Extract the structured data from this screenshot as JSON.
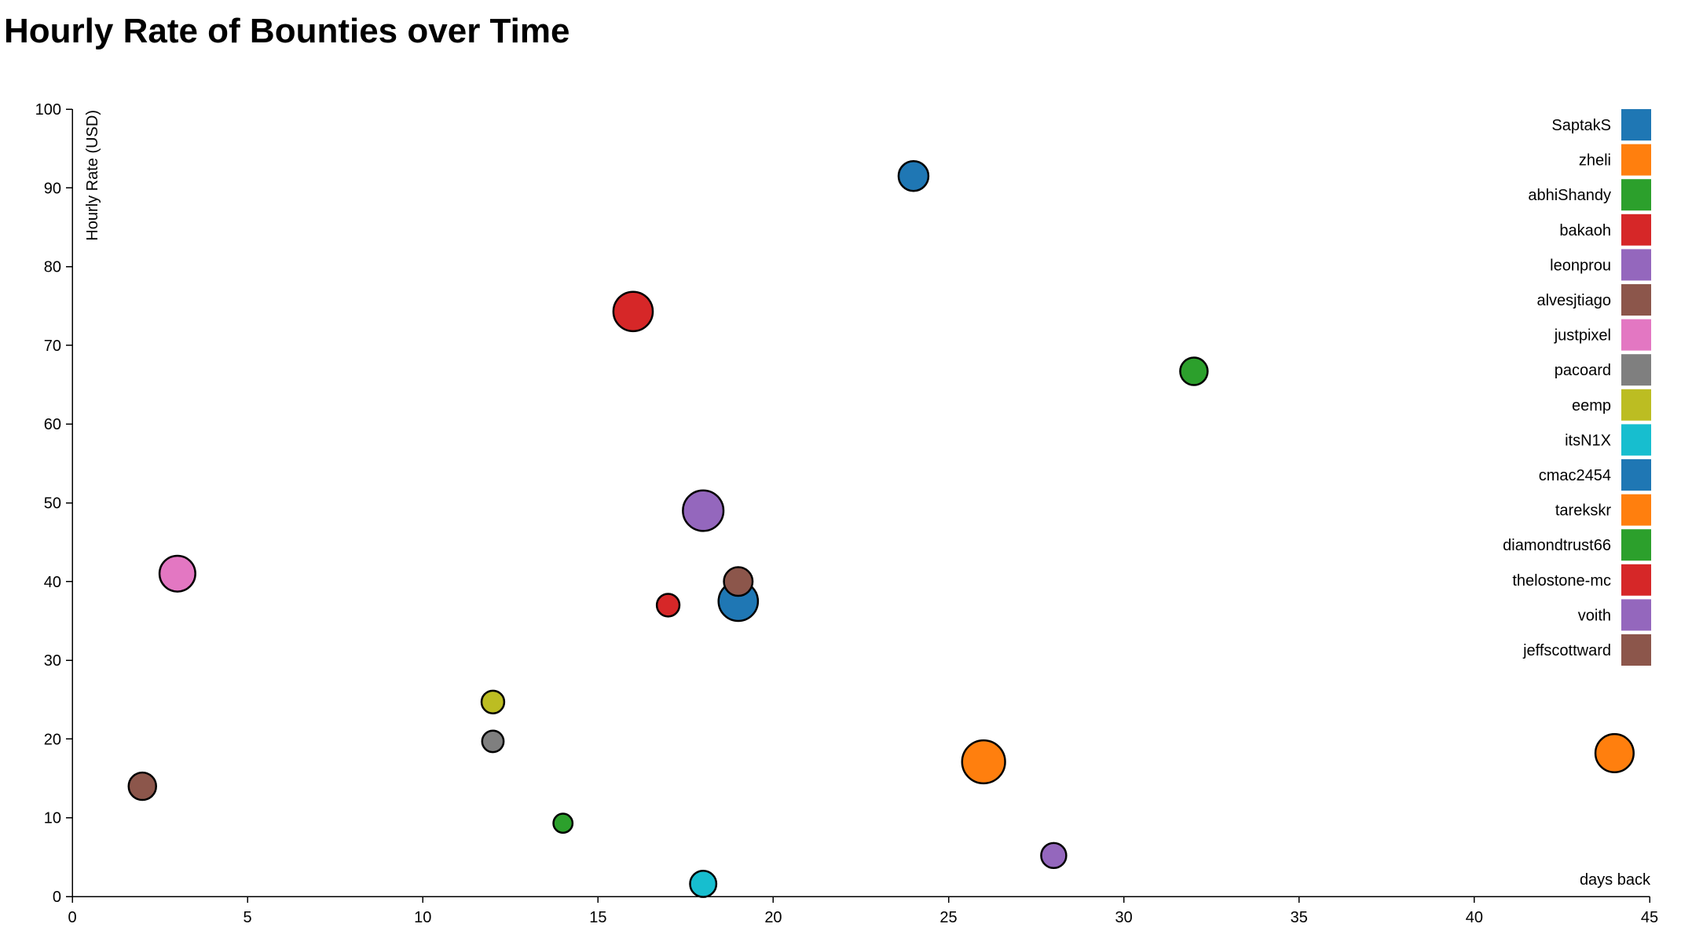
{
  "title": "Hourly Rate of Bounties over Time",
  "chart_data": {
    "type": "scatter",
    "title": "Hourly Rate of Bounties over Time",
    "xlabel": "days back",
    "ylabel": "Hourly Rate (USD)",
    "xlim": [
      0,
      45
    ],
    "ylim": [
      0,
      100
    ],
    "x_ticks": [
      0,
      5,
      10,
      15,
      20,
      25,
      30,
      35,
      40,
      45
    ],
    "y_ticks": [
      0,
      10,
      20,
      30,
      40,
      50,
      60,
      70,
      80,
      90,
      100
    ],
    "grid": false,
    "legend_position": "top-right",
    "series": [
      {
        "name": "SaptakS",
        "color": "#1f77b4"
      },
      {
        "name": "zheli",
        "color": "#ff7f0e"
      },
      {
        "name": "abhiShandy",
        "color": "#2ca02c"
      },
      {
        "name": "bakaoh",
        "color": "#d62728"
      },
      {
        "name": "leonprou",
        "color": "#9467bd"
      },
      {
        "name": "alvesjtiago",
        "color": "#8c564b"
      },
      {
        "name": "justpixel",
        "color": "#e377c2"
      },
      {
        "name": "pacoard",
        "color": "#7f7f7f"
      },
      {
        "name": "eemp",
        "color": "#bcbd22"
      },
      {
        "name": "itsN1X",
        "color": "#17becf"
      },
      {
        "name": "cmac2454",
        "color": "#1f77b4"
      },
      {
        "name": "tarekskr",
        "color": "#ff7f0e"
      },
      {
        "name": "diamondtrust66",
        "color": "#2ca02c"
      },
      {
        "name": "thelostone-mc",
        "color": "#d62728"
      },
      {
        "name": "voith",
        "color": "#9467bd"
      },
      {
        "name": "jeffscottward",
        "color": "#8c564b"
      }
    ],
    "points": [
      {
        "x": 24,
        "y": 91.5,
        "size": 2.5,
        "color": "#1f77b4"
      },
      {
        "x": 16,
        "y": 74.3,
        "size": 3.3,
        "color": "#d62728"
      },
      {
        "x": 32,
        "y": 66.7,
        "size": 2.3,
        "color": "#2ca02c"
      },
      {
        "x": 18,
        "y": 49,
        "size": 3.4,
        "color": "#9467bd"
      },
      {
        "x": 3,
        "y": 41,
        "size": 3.0,
        "color": "#e377c2"
      },
      {
        "x": 19,
        "y": 40,
        "size": 2.4,
        "color": "#8c564b"
      },
      {
        "x": 19,
        "y": 37.5,
        "size": 3.3,
        "color": "#1f77b4"
      },
      {
        "x": 17,
        "y": 37,
        "size": 1.9,
        "color": "#d62728"
      },
      {
        "x": 12,
        "y": 24.7,
        "size": 1.9,
        "color": "#bcbd22"
      },
      {
        "x": 12,
        "y": 19.7,
        "size": 1.8,
        "color": "#7f7f7f"
      },
      {
        "x": 26,
        "y": 17.1,
        "size": 3.6,
        "color": "#ff7f0e"
      },
      {
        "x": 44,
        "y": 18.2,
        "size": 3.2,
        "color": "#ff7f0e"
      },
      {
        "x": 2,
        "y": 14,
        "size": 2.3,
        "color": "#8c564b"
      },
      {
        "x": 14,
        "y": 9.3,
        "size": 1.6,
        "color": "#2ca02c"
      },
      {
        "x": 28,
        "y": 5.2,
        "size": 2.1,
        "color": "#9467bd"
      },
      {
        "x": 18,
        "y": 1.6,
        "size": 2.2,
        "color": "#17becf"
      }
    ]
  }
}
